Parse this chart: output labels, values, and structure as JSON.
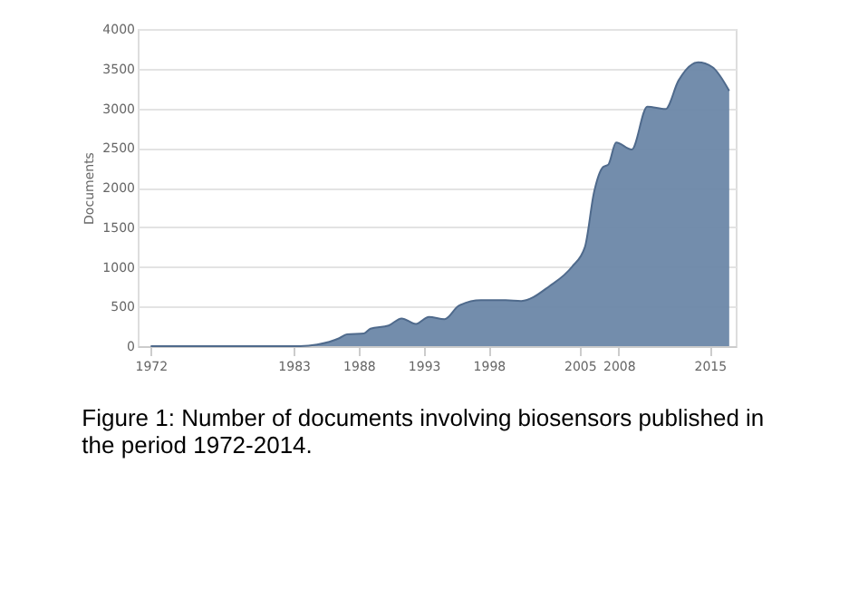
{
  "chart_data": {
    "type": "area",
    "ylabel": "Documents",
    "x": [
      1972,
      1978.8,
      1983.5,
      1984.8,
      1986.5,
      1987.1,
      1988.4,
      1988.9,
      1990.3,
      1991.3,
      1992.4,
      1993.4,
      1994.6,
      1995.7,
      1997.4,
      1999.3,
      2000.5,
      2002.7,
      2004.4,
      2005.4,
      2006.1,
      2006.8,
      2007.2,
      2007.8,
      2009.0,
      2010.2,
      2011.6,
      2012.6,
      2014.1,
      2015.2,
      2016.5
    ],
    "series": [
      {
        "color": "#6b87a8",
        "values": [
          0,
          0,
          0,
          20,
          100,
          150,
          160,
          220,
          260,
          350,
          280,
          370,
          340,
          510,
          580,
          580,
          570,
          760,
          1000,
          1250,
          1940,
          2260,
          2290,
          2570,
          2480,
          3020,
          2990,
          3350,
          3580,
          3520,
          3220
        ]
      }
    ],
    "xlim": [
      1971,
      2017
    ],
    "ylim": [
      0,
      4000
    ],
    "xticks": [
      1972,
      1983,
      1988,
      1993,
      1998,
      2005,
      2008,
      2015
    ],
    "yticks": [
      0,
      500,
      1000,
      1500,
      2000,
      2500,
      3000,
      3500,
      4000
    ],
    "grid": "y",
    "annotations": [
      "Figure 1: Number of documents involving biosensors published in the period 1972-2014."
    ]
  }
}
